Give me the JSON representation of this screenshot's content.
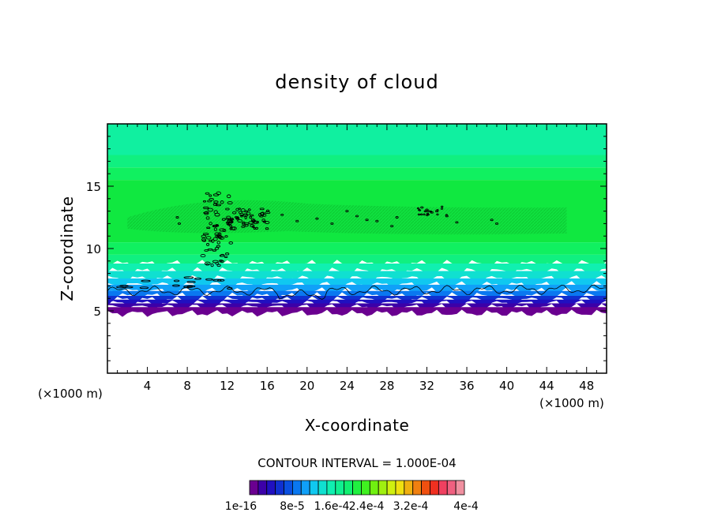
{
  "chart_data": {
    "type": "heatmap",
    "title": "density of cloud",
    "xlabel": "X-coordinate",
    "ylabel": "Z-coordinate",
    "x_unit": "(×1000 m)",
    "y_unit": "(×1000 m)",
    "xlim": [
      0,
      50
    ],
    "ylim": [
      0,
      20
    ],
    "x_ticks": [
      4,
      8,
      12,
      16,
      20,
      24,
      28,
      32,
      36,
      40,
      44,
      48
    ],
    "x_tick_labels": [
      "4",
      "8",
      "12",
      "16",
      "20",
      "24",
      "28",
      "32",
      "36",
      "40",
      "44",
      "48"
    ],
    "y_ticks": [
      5,
      10,
      15
    ],
    "y_tick_labels": [
      "5",
      "10",
      "15"
    ],
    "contour_interval_text": "CONTOUR INTERVAL = 1.000E-04",
    "colorbar": {
      "colors": [
        "#6a0090",
        "#3c00a8",
        "#2010c0",
        "#1030d0",
        "#0a50e0",
        "#0a78f0",
        "#10a0f8",
        "#10c8f0",
        "#10e0d0",
        "#10f0b0",
        "#10f090",
        "#10f070",
        "#20f040",
        "#40f020",
        "#70f010",
        "#a0f010",
        "#d0f010",
        "#f0e010",
        "#f0b010",
        "#f08010",
        "#f05010",
        "#f03020",
        "#f04060",
        "#f06080",
        "#f090a0"
      ],
      "labels": [
        "1e-16",
        "8e-5",
        "1.6e-4",
        "2.4e-4",
        "3.2e-4",
        "4e-4"
      ]
    },
    "field": {
      "description_levels": [
        {
          "z_min": 0,
          "z_max": 4.8,
          "value": "none"
        },
        {
          "z_min": 4.8,
          "z_max": 5.5,
          "value": "1e-16"
        },
        {
          "z_min": 5.5,
          "z_max": 7.0,
          "value": "~1e-5 to 6e-5"
        },
        {
          "z_min": 7.0,
          "z_max": 9.5,
          "value": "~7e-5 to 1.1e-4"
        },
        {
          "z_min": 9.5,
          "z_max": 17.5,
          "value": "~1.1e-4 to 1.4e-4"
        },
        {
          "z_min": 17.5,
          "z_max": 20,
          "value": "~9e-5 to 1.1e-4"
        }
      ]
    }
  }
}
